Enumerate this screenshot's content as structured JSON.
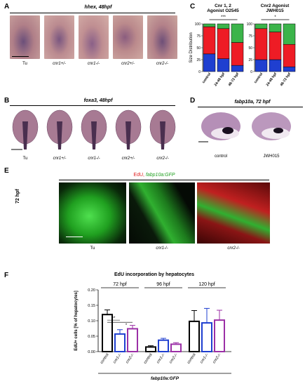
{
  "panels": {
    "A": {
      "letter": "A",
      "title": "hhex, 48hpf",
      "labels": [
        "Tu",
        "cnr1+/-",
        "cnr1-/-",
        "cnr2+/-",
        "cnr2-/-"
      ]
    },
    "B": {
      "letter": "B",
      "title": "foxa3, 48hpf",
      "labels": [
        "Tu",
        "cnr1+/-",
        "cnr1-/-",
        "cnr2+/-",
        "cnr2-/-"
      ]
    },
    "C": {
      "letter": "C"
    },
    "D": {
      "letter": "D",
      "title": "fabp10a, 72 hpf",
      "labels": [
        "control",
        "JWH015"
      ]
    },
    "E": {
      "letter": "E",
      "title_edu": "EdU,",
      "title_gfp": "fabp10a:GFP",
      "side_label": "72 hpf",
      "labels": [
        "Tu",
        "cnr1-/-",
        "cnr2-/-"
      ]
    },
    "F": {
      "letter": "F",
      "bottom_label": "fabp10a:GFP"
    }
  },
  "colors": {
    "red": "#ee1c25",
    "green": "#3bb44a",
    "blue": "#1f3fd0",
    "purple": "#9b2fa6",
    "black": "#000000"
  },
  "chart_data": [
    {
      "type": "bar",
      "stacked": true,
      "title": "Cnr 1, 2 Agonist O2545",
      "significance": "***",
      "ylabel": "Size Distribution",
      "ylim": [
        0,
        100
      ],
      "yticks": [
        0,
        25,
        50,
        75,
        100
      ],
      "categories": [
        "control",
        "24-48 hpf",
        "48-72 hpf"
      ],
      "series": [
        {
          "color": "#1f3fd0",
          "values": [
            37,
            27,
            13
          ]
        },
        {
          "color": "#ee1c25",
          "values": [
            57,
            63,
            48
          ]
        },
        {
          "color": "#3bb44a",
          "values": [
            6,
            10,
            39
          ]
        }
      ]
    },
    {
      "type": "bar",
      "stacked": true,
      "title": "Cnr2 Agonist JWH015",
      "significance": "*",
      "ylim": [
        0,
        100
      ],
      "yticks": [
        0,
        25,
        50,
        75,
        100
      ],
      "categories": [
        "control",
        "24-48 hpf",
        "48-72 hpf"
      ],
      "series": [
        {
          "color": "#1f3fd0",
          "values": [
            25,
            25,
            10
          ]
        },
        {
          "color": "#ee1c25",
          "values": [
            65,
            58,
            47
          ]
        },
        {
          "color": "#3bb44a",
          "values": [
            10,
            17,
            43
          ]
        }
      ]
    },
    {
      "type": "bar",
      "title": "EdU incorporation by hepatocytes",
      "ylabel": "EdU+ cells [% of hepatocytes]",
      "ylim": [
        0,
        0.2
      ],
      "yticks": [
        "0.00",
        "0.05",
        "0.10",
        "0.15",
        "0.20"
      ],
      "groups": [
        {
          "label": "72 hpf",
          "categories": [
            "control",
            "cnr1-/-",
            "cnr2-/-"
          ],
          "values": [
            0.12,
            0.057,
            0.074
          ],
          "errors": [
            0.015,
            0.014,
            0.011
          ],
          "sig": [
            "**",
            "*"
          ]
        },
        {
          "label": "96 hpf",
          "categories": [
            "control",
            "cnr1-/-",
            "cnr2-/-"
          ],
          "values": [
            0.015,
            0.037,
            0.024
          ],
          "errors": [
            0.004,
            0.006,
            0.005
          ]
        },
        {
          "label": "120 hpf",
          "categories": [
            "control",
            "cnr1-/-",
            "cnr2-/-"
          ],
          "values": [
            0.098,
            0.093,
            0.102
          ],
          "errors": [
            0.035,
            0.047,
            0.032
          ]
        }
      ],
      "bar_colors": [
        "#000000",
        "#1f3fd0",
        "#9b2fa6"
      ]
    }
  ]
}
